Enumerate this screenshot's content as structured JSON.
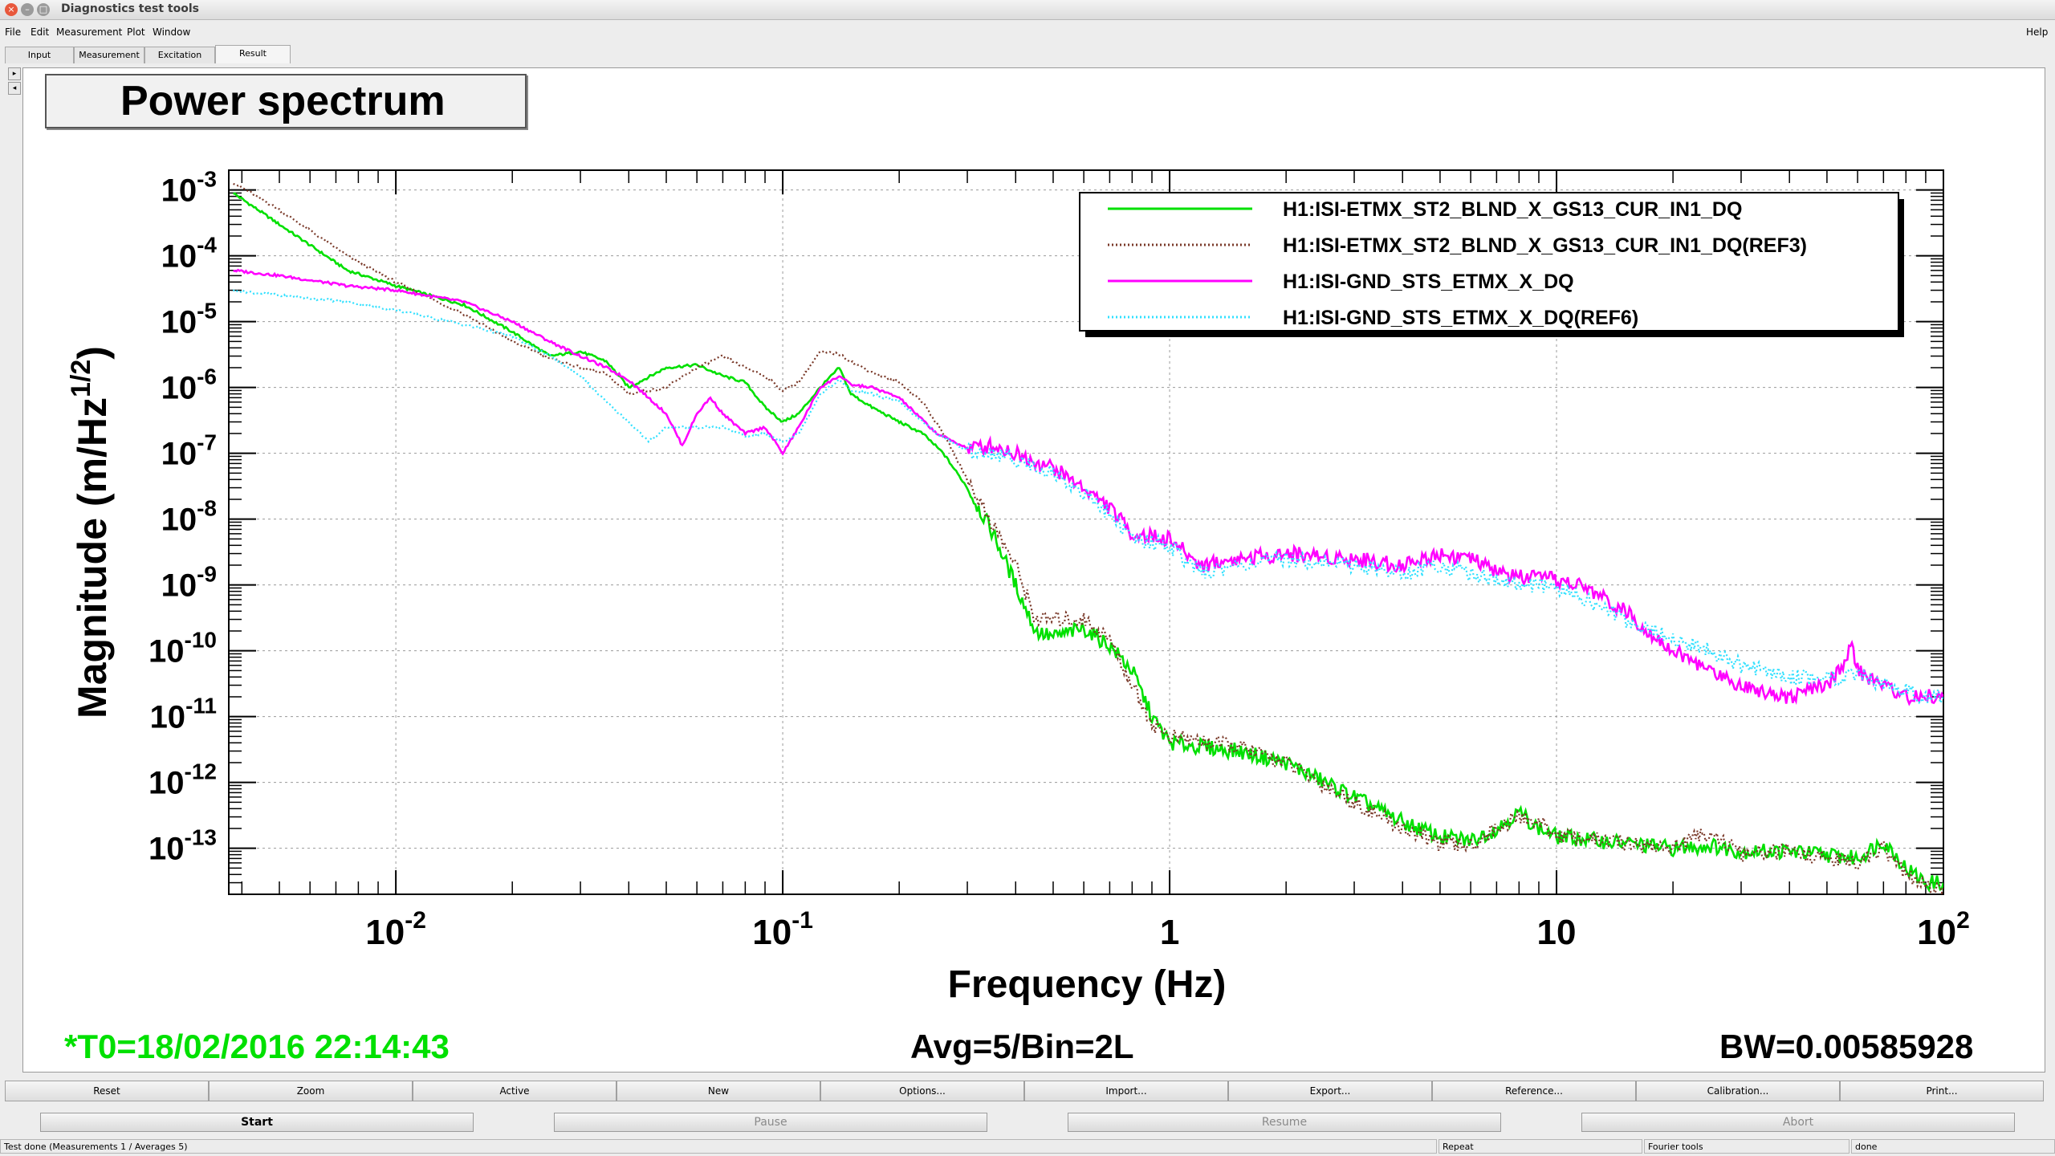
{
  "window": {
    "title": "Diagnostics test tools"
  },
  "menu": [
    "File",
    "Edit",
    "Measurement",
    "Plot",
    "Window"
  ],
  "menu_help": "Help",
  "tabs": [
    "Input",
    "Measurement",
    "Excitation",
    "Result"
  ],
  "active_tab": "Result",
  "side_arrows": [
    "▸",
    "◂"
  ],
  "plot_title": "Power spectrum",
  "status": {
    "t0": "*T0=18/02/2016 22:14:43",
    "avg": "Avg=5/Bin=2L",
    "bw": "BW=0.00585928"
  },
  "toolbar": [
    "Reset",
    "Zoom",
    "Active",
    "New",
    "Options...",
    "Import...",
    "Export...",
    "Reference...",
    "Calibration...",
    "Print..."
  ],
  "controls": {
    "start": "Start",
    "pause": "Pause",
    "resume": "Resume",
    "abort": "Abort"
  },
  "statusbar": {
    "message": "Test done (Measurements 1 / Averages 5)",
    "repeat": "Repeat",
    "fourier": "Fourier tools",
    "state": "done"
  },
  "colors": {
    "green": "#00e000",
    "brown": "#7a3a2a",
    "magenta": "#ff00ff",
    "cyan": "#30e0ff",
    "status_green": "#00e000"
  },
  "chart_data": {
    "type": "line",
    "xlabel": "Frequency (Hz)",
    "ylabel": "Magnitude (m/Hz",
    "ylabel_sup": "1/2",
    "ylabel_close": ")",
    "x_scale": "log",
    "y_scale": "log",
    "xlim": [
      0.0037,
      100
    ],
    "ylim": [
      2e-14,
      0.002
    ],
    "grid": true,
    "legend_position": "top-right",
    "x_ticks": [
      {
        "value": 0.01,
        "base": "10",
        "exp": "-2"
      },
      {
        "value": 0.1,
        "base": "10",
        "exp": "-1"
      },
      {
        "value": 1,
        "base": "1",
        "exp": ""
      },
      {
        "value": 10,
        "base": "10",
        "exp": ""
      },
      {
        "value": 100,
        "base": "10",
        "exp": "2"
      }
    ],
    "y_ticks": [
      {
        "value": 0.001,
        "base": "10",
        "exp": "-3"
      },
      {
        "value": 0.0001,
        "base": "10",
        "exp": "-4"
      },
      {
        "value": 1e-05,
        "base": "10",
        "exp": "-5"
      },
      {
        "value": 1e-06,
        "base": "10",
        "exp": "-6"
      },
      {
        "value": 1e-07,
        "base": "10",
        "exp": "-7"
      },
      {
        "value": 1e-08,
        "base": "10",
        "exp": "-8"
      },
      {
        "value": 1e-09,
        "base": "10",
        "exp": "-9"
      },
      {
        "value": 1e-10,
        "base": "10",
        "exp": "-10"
      },
      {
        "value": 1e-11,
        "base": "10",
        "exp": "-11"
      },
      {
        "value": 1e-12,
        "base": "10",
        "exp": "-12"
      },
      {
        "value": 1e-13,
        "base": "10",
        "exp": "-13"
      }
    ],
    "series": [
      {
        "name": "H1:ISI-ETMX_ST2_BLND_X_GS13_CUR_IN1_DQ",
        "color": "#00e000",
        "dash": "solid",
        "points": [
          [
            0.0038,
            0.0009
          ],
          [
            0.005,
            0.0003
          ],
          [
            0.0075,
            6e-05
          ],
          [
            0.01,
            3.5e-05
          ],
          [
            0.015,
            1.8e-05
          ],
          [
            0.02,
            7e-06
          ],
          [
            0.025,
            3e-06
          ],
          [
            0.03,
            3.5e-06
          ],
          [
            0.035,
            2.5e-06
          ],
          [
            0.04,
            1e-06
          ],
          [
            0.05,
            2e-06
          ],
          [
            0.06,
            2.2e-06
          ],
          [
            0.07,
            1.5e-06
          ],
          [
            0.08,
            1.2e-06
          ],
          [
            0.09,
            5e-07
          ],
          [
            0.1,
            3e-07
          ],
          [
            0.11,
            4e-07
          ],
          [
            0.125,
            1e-06
          ],
          [
            0.14,
            2e-06
          ],
          [
            0.15,
            8e-07
          ],
          [
            0.17,
            5e-07
          ],
          [
            0.2,
            3e-07
          ],
          [
            0.23,
            2e-07
          ],
          [
            0.26,
            1e-07
          ],
          [
            0.3,
            3e-08
          ],
          [
            0.35,
            6e-09
          ],
          [
            0.4,
            1e-09
          ],
          [
            0.45,
            2e-10
          ],
          [
            0.5,
            1.6e-10
          ],
          [
            0.6,
            2.2e-10
          ],
          [
            0.7,
            1.2e-10
          ],
          [
            0.8,
            5e-11
          ],
          [
            0.9,
            1e-11
          ],
          [
            1,
            4e-12
          ],
          [
            1.5,
            3e-12
          ],
          [
            2,
            2e-12
          ],
          [
            3,
            6e-13
          ],
          [
            4,
            2.5e-13
          ],
          [
            5,
            1.5e-13
          ],
          [
            6,
            1.3e-13
          ],
          [
            7,
            2e-13
          ],
          [
            8,
            3.5e-13
          ],
          [
            9,
            2e-13
          ],
          [
            10,
            1.5e-13
          ],
          [
            15,
            1.2e-13
          ],
          [
            20,
            1e-13
          ],
          [
            25,
            1.1e-13
          ],
          [
            30,
            9e-14
          ],
          [
            40,
            9e-14
          ],
          [
            50,
            8e-14
          ],
          [
            60,
            7e-14
          ],
          [
            70,
            1.3e-13
          ],
          [
            80,
            5e-14
          ],
          [
            90,
            3e-14
          ],
          [
            100,
            3e-14
          ]
        ]
      },
      {
        "name": "H1:ISI-ETMX_ST2_BLND_X_GS13_CUR_IN1_DQ(REF3)",
        "color": "#7a3a2a",
        "dash": "dotted",
        "points": [
          [
            0.0038,
            0.0013
          ],
          [
            0.005,
            0.0005
          ],
          [
            0.0075,
            0.0001
          ],
          [
            0.01,
            4e-05
          ],
          [
            0.015,
            1.3e-05
          ],
          [
            0.02,
            5e-06
          ],
          [
            0.025,
            2.8e-06
          ],
          [
            0.03,
            2e-06
          ],
          [
            0.035,
            1.6e-06
          ],
          [
            0.04,
            8e-07
          ],
          [
            0.05,
            1e-06
          ],
          [
            0.06,
            2e-06
          ],
          [
            0.07,
            3e-06
          ],
          [
            0.08,
            2e-06
          ],
          [
            0.09,
            1.5e-06
          ],
          [
            0.1,
            9e-07
          ],
          [
            0.11,
            1.2e-06
          ],
          [
            0.125,
            3.5e-06
          ],
          [
            0.14,
            3.2e-06
          ],
          [
            0.15,
            2.5e-06
          ],
          [
            0.17,
            1.7e-06
          ],
          [
            0.2,
            1.2e-06
          ],
          [
            0.23,
            6e-07
          ],
          [
            0.26,
            2e-07
          ],
          [
            0.3,
            4e-08
          ],
          [
            0.35,
            8e-09
          ],
          [
            0.4,
            2e-09
          ],
          [
            0.45,
            3e-10
          ],
          [
            0.5,
            3e-10
          ],
          [
            0.6,
            3e-10
          ],
          [
            0.7,
            1.5e-10
          ],
          [
            0.8,
            3e-11
          ],
          [
            0.9,
            8e-12
          ],
          [
            1,
            5e-12
          ],
          [
            1.5,
            3.5e-12
          ],
          [
            2,
            2e-12
          ],
          [
            3,
            5e-13
          ],
          [
            4,
            2e-13
          ],
          [
            5,
            1.2e-13
          ],
          [
            6,
            1.1e-13
          ],
          [
            7,
            2e-13
          ],
          [
            8,
            3e-13
          ],
          [
            9,
            2.5e-13
          ],
          [
            10,
            1.6e-13
          ],
          [
            15,
            1.2e-13
          ],
          [
            20,
            1e-13
          ],
          [
            25,
            1.8e-13
          ],
          [
            30,
            8e-14
          ],
          [
            40,
            9e-14
          ],
          [
            50,
            7e-14
          ],
          [
            60,
            6e-14
          ],
          [
            70,
            1e-13
          ],
          [
            80,
            4e-14
          ],
          [
            90,
            2.5e-14
          ],
          [
            100,
            2.5e-14
          ]
        ]
      },
      {
        "name": "H1:ISI-GND_STS_ETMX_X_DQ",
        "color": "#ff00ff",
        "dash": "solid",
        "points": [
          [
            0.0038,
            6e-05
          ],
          [
            0.005,
            5e-05
          ],
          [
            0.0075,
            3.5e-05
          ],
          [
            0.01,
            3e-05
          ],
          [
            0.015,
            2e-05
          ],
          [
            0.02,
            1e-05
          ],
          [
            0.025,
            5e-06
          ],
          [
            0.03,
            3e-06
          ],
          [
            0.035,
            2e-06
          ],
          [
            0.04,
            1.3e-06
          ],
          [
            0.05,
            4e-07
          ],
          [
            0.055,
            1.3e-07
          ],
          [
            0.06,
            4e-07
          ],
          [
            0.065,
            7e-07
          ],
          [
            0.07,
            4e-07
          ],
          [
            0.08,
            2e-07
          ],
          [
            0.09,
            2.5e-07
          ],
          [
            0.1,
            1e-07
          ],
          [
            0.11,
            2.5e-07
          ],
          [
            0.125,
            1e-06
          ],
          [
            0.14,
            1.5e-06
          ],
          [
            0.15,
            1.1e-06
          ],
          [
            0.17,
            1e-06
          ],
          [
            0.2,
            7e-07
          ],
          [
            0.25,
            2e-07
          ],
          [
            0.3,
            1.2e-07
          ],
          [
            0.35,
            1.3e-07
          ],
          [
            0.4,
            1e-07
          ],
          [
            0.5,
            6e-08
          ],
          [
            0.6,
            3e-08
          ],
          [
            0.7,
            1.5e-08
          ],
          [
            0.8,
            6e-09
          ],
          [
            1,
            5e-09
          ],
          [
            1.2,
            2e-09
          ],
          [
            1.5,
            2.5e-09
          ],
          [
            2,
            3e-09
          ],
          [
            3,
            2.5e-09
          ],
          [
            4,
            2e-09
          ],
          [
            5,
            3e-09
          ],
          [
            6,
            2.5e-09
          ],
          [
            7,
            1.6e-09
          ],
          [
            8,
            1.3e-09
          ],
          [
            10,
            1.2e-09
          ],
          [
            12,
            9e-10
          ],
          [
            15,
            4e-10
          ],
          [
            20,
            1e-10
          ],
          [
            25,
            5e-11
          ],
          [
            30,
            3e-11
          ],
          [
            40,
            2e-11
          ],
          [
            50,
            3e-11
          ],
          [
            55,
            6e-11
          ],
          [
            58,
            1.2e-10
          ],
          [
            60,
            5e-11
          ],
          [
            70,
            3e-11
          ],
          [
            80,
            2e-11
          ],
          [
            90,
            2e-11
          ],
          [
            100,
            2e-11
          ]
        ]
      },
      {
        "name": "H1:ISI-GND_STS_ETMX_X_DQ(REF6)",
        "color": "#30e0ff",
        "dash": "dotted",
        "points": [
          [
            0.0038,
            3e-05
          ],
          [
            0.005,
            2.5e-05
          ],
          [
            0.0075,
            2e-05
          ],
          [
            0.01,
            1.5e-05
          ],
          [
            0.015,
            9e-06
          ],
          [
            0.02,
            6e-06
          ],
          [
            0.025,
            3e-06
          ],
          [
            0.03,
            1.5e-06
          ],
          [
            0.035,
            6e-07
          ],
          [
            0.04,
            3e-07
          ],
          [
            0.045,
            1.5e-07
          ],
          [
            0.05,
            2.5e-07
          ],
          [
            0.06,
            2.5e-07
          ],
          [
            0.07,
            2.5e-07
          ],
          [
            0.08,
            1.8e-07
          ],
          [
            0.09,
            2e-07
          ],
          [
            0.1,
            1.5e-07
          ],
          [
            0.11,
            2e-07
          ],
          [
            0.125,
            8e-07
          ],
          [
            0.14,
            1.3e-06
          ],
          [
            0.15,
            9e-07
          ],
          [
            0.17,
            8e-07
          ],
          [
            0.2,
            6e-07
          ],
          [
            0.25,
            2e-07
          ],
          [
            0.3,
            1.1e-07
          ],
          [
            0.35,
            1e-07
          ],
          [
            0.4,
            8e-08
          ],
          [
            0.5,
            5e-08
          ],
          [
            0.6,
            2.5e-08
          ],
          [
            0.7,
            1.2e-08
          ],
          [
            0.8,
            5e-09
          ],
          [
            1,
            4e-09
          ],
          [
            1.2,
            1.5e-09
          ],
          [
            1.5,
            2e-09
          ],
          [
            2,
            2.5e-09
          ],
          [
            3,
            2e-09
          ],
          [
            4,
            1.5e-09
          ],
          [
            5,
            2e-09
          ],
          [
            6,
            1.5e-09
          ],
          [
            7,
            1.2e-09
          ],
          [
            8,
            1e-09
          ],
          [
            10,
            9e-10
          ],
          [
            12,
            6e-10
          ],
          [
            15,
            3e-10
          ],
          [
            20,
            1.5e-10
          ],
          [
            25,
            1e-10
          ],
          [
            30,
            6e-11
          ],
          [
            40,
            4e-11
          ],
          [
            50,
            4e-11
          ],
          [
            60,
            4e-11
          ],
          [
            70,
            3e-11
          ],
          [
            80,
            2.5e-11
          ],
          [
            90,
            2e-11
          ],
          [
            100,
            2e-11
          ]
        ]
      }
    ]
  }
}
